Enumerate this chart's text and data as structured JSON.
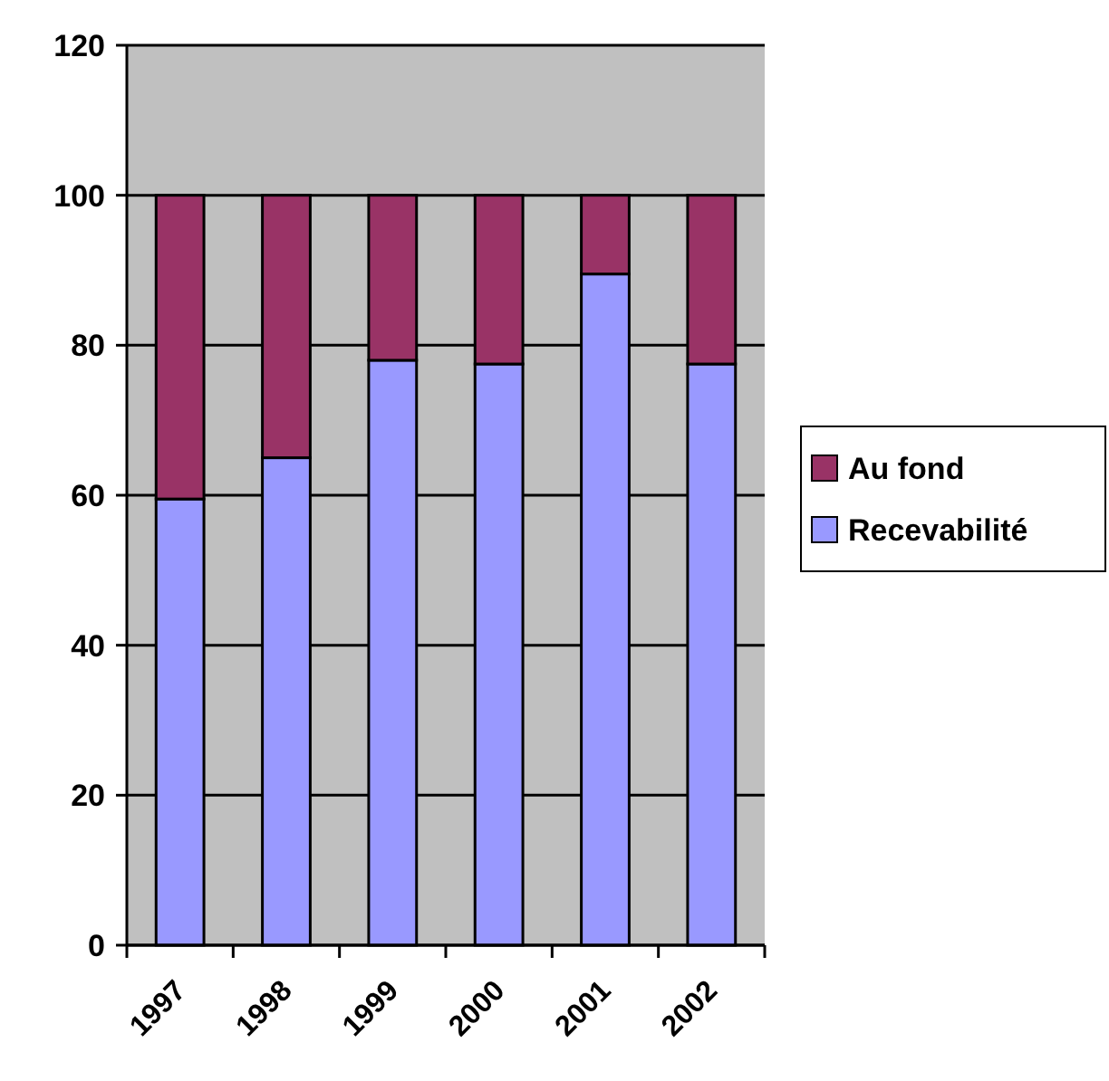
{
  "chart_data": {
    "type": "bar",
    "stacked": true,
    "categories": [
      "1997",
      "1998",
      "1999",
      "2000",
      "2001",
      "2002"
    ],
    "series": [
      {
        "name": "Recevabilité",
        "color": "#9999ff",
        "values": [
          59.5,
          65,
          78,
          77.5,
          89.5,
          77.5
        ]
      },
      {
        "name": "Au fond",
        "color": "#993366",
        "values": [
          40.5,
          35,
          22,
          22.5,
          10.5,
          22.5
        ]
      }
    ],
    "ylim": [
      0,
      120
    ],
    "yticks": [
      0,
      20,
      40,
      60,
      80,
      100,
      120
    ],
    "grid": "y",
    "legend": "right"
  }
}
